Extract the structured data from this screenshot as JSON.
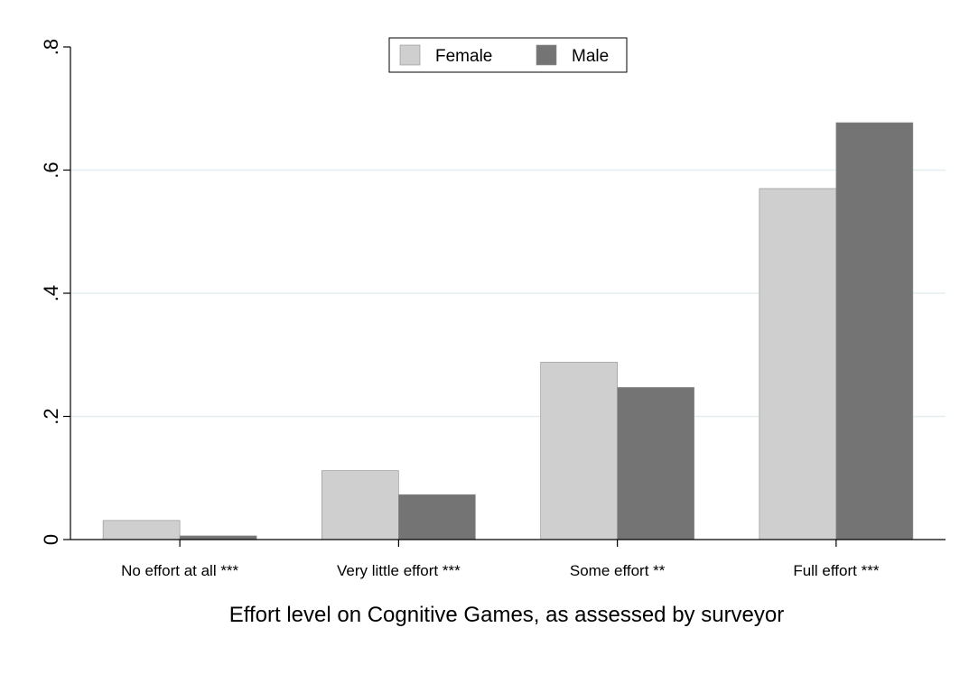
{
  "chart_data": {
    "type": "bar",
    "categories": [
      "No effort at all ***",
      "Very little effort ***",
      "Some effort **",
      "Full effort ***"
    ],
    "series": [
      {
        "name": "Female",
        "color": "#cfcfcf",
        "values": [
          0.031,
          0.112,
          0.288,
          0.57
        ]
      },
      {
        "name": "Male",
        "color": "#747474",
        "values": [
          0.006,
          0.073,
          0.247,
          0.677
        ]
      }
    ],
    "title": "",
    "xlabel": "Effort level on Cognitive Games, as assessed by surveyor",
    "ylabel": "",
    "ylim": [
      0,
      0.8
    ],
    "yticks": [
      0,
      0.2,
      0.4,
      0.6,
      0.8
    ],
    "ytick_labels": [
      "0",
      ".2",
      ".4",
      ".6",
      ".8"
    ],
    "grid": true,
    "legend_position": "top-center"
  }
}
